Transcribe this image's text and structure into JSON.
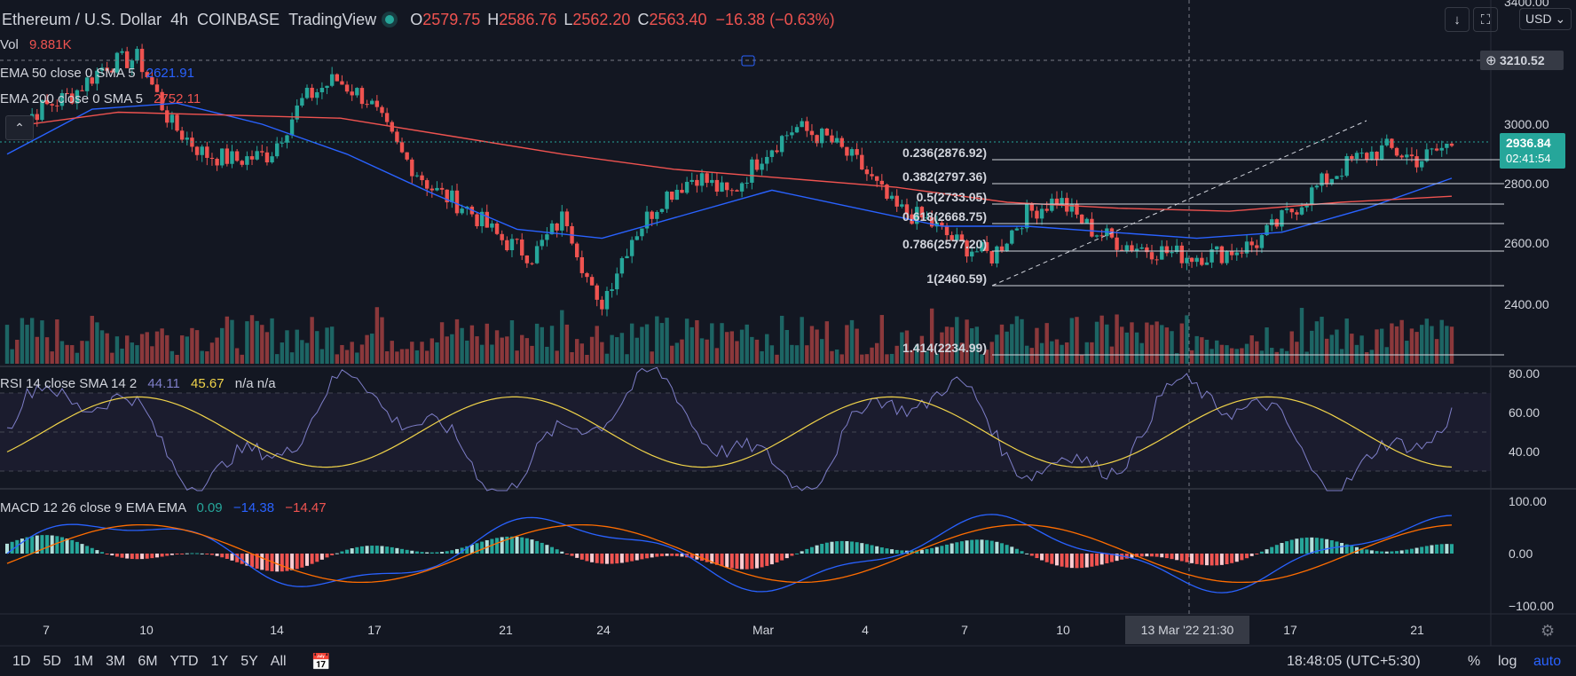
{
  "header": {
    "symbol": "Ethereum / U.S. Dollar",
    "interval": "4h",
    "exchange": "COINBASE",
    "publisher": "TradingView",
    "o_label": "O",
    "o": "2579.75",
    "h_label": "H",
    "h": "2586.76",
    "l_label": "L",
    "l": "2562.20",
    "c_label": "C",
    "c": "2563.40",
    "change": "−16.38 (−0.63%)",
    "currency": "USD"
  },
  "indicators": {
    "vol_label": "Vol",
    "vol_value": "9.881K",
    "ema50_label": "EMA 50 close 0 SMA 5",
    "ema50_value": "2621.91",
    "ema200_label": "EMA 200 close 0 SMA 5",
    "ema200_value": "2752.11",
    "rsi_label": "RSI 14 close SMA 14 2",
    "rsi_value": "44.11",
    "rsi_sma": "45.67",
    "rsi_na": "n/a n/a",
    "macd_label": "MACD 12 26 close 9 EMA EMA",
    "macd_hist": "0.09",
    "macd_line": "−14.38",
    "macd_signal": "−14.47"
  },
  "price_axis": {
    "ticks": [
      "3400.00",
      "3000.00",
      "2800.00",
      "2600.00",
      "2400.00"
    ],
    "crosshair_price": "3210.52",
    "last_price": "2936.84",
    "countdown": "02:41:54"
  },
  "rsi_axis": {
    "ticks": [
      "80.00",
      "60.00",
      "40.00"
    ]
  },
  "macd_axis": {
    "ticks": [
      "100.00",
      "0.00",
      "−100.00"
    ]
  },
  "time_axis": {
    "ticks": [
      "7",
      "10",
      "14",
      "17",
      "21",
      "24",
      "Mar",
      "4",
      "7",
      "10",
      "17",
      "21"
    ],
    "crosshair_label": "13 Mar '22   21:30"
  },
  "fib_levels": [
    {
      "label": "0.236(2876.92)"
    },
    {
      "label": "0.382(2797.36)"
    },
    {
      "label": "0.5(2733.05)"
    },
    {
      "label": "0.618(2668.75)"
    },
    {
      "label": "0.786(2577.20)"
    },
    {
      "label": "1(2460.59)"
    },
    {
      "label": "1.414(2234.99)"
    }
  ],
  "bottom_bar": {
    "timeframes": [
      "1D",
      "5D",
      "1M",
      "3M",
      "6M",
      "YTD",
      "1Y",
      "5Y",
      "All"
    ],
    "clock": "18:48:05 (UTC+5:30)",
    "pct": "%",
    "log": "log",
    "auto": "auto"
  },
  "colors": {
    "background": "#131722",
    "up": "#26a69a",
    "down": "#ef5350",
    "ema50": "#2962ff",
    "ema200": "#ef5350",
    "rsi": "#7e7ec8",
    "rsi_sma": "#f0d34a",
    "accent": "#2962ff"
  },
  "chart_data": {
    "type": "candlestick",
    "title": "Ethereum / U.S. Dollar · 4h · COINBASE",
    "x_range": [
      "Feb 6 2022",
      "Mar 22 2022"
    ],
    "y_range": [
      2200,
      3400
    ],
    "price_path": [
      [
        "Feb 6",
        2980
      ],
      [
        "Feb 7",
        3050
      ],
      [
        "Feb 8",
        3100
      ],
      [
        "Feb 9",
        3200
      ],
      [
        "Feb 10",
        3220
      ],
      [
        "Feb 11",
        3000
      ],
      [
        "Feb 12",
        2900
      ],
      [
        "Feb 13",
        2880
      ],
      [
        "Feb 14",
        2900
      ],
      [
        "Feb 15",
        3080
      ],
      [
        "Feb 16",
        3150
      ],
      [
        "Feb 17",
        3080
      ],
      [
        "Feb 18",
        2900
      ],
      [
        "Feb 19",
        2780
      ],
      [
        "Feb 20",
        2720
      ],
      [
        "Feb 21",
        2620
      ],
      [
        "Feb 22",
        2560
      ],
      [
        "Feb 23",
        2700
      ],
      [
        "Feb 24",
        2380
      ],
      [
        "Feb 25",
        2620
      ],
      [
        "Feb 26",
        2760
      ],
      [
        "Feb 27",
        2830
      ],
      [
        "Feb 28",
        2760
      ],
      [
        "Mar 1",
        2900
      ],
      [
        "Mar 2",
        2990
      ],
      [
        "Mar 3",
        2950
      ],
      [
        "Mar 4",
        2860
      ],
      [
        "Mar 5",
        2720
      ],
      [
        "Mar 6",
        2680
      ],
      [
        "Mar 7",
        2600
      ],
      [
        "Mar 8",
        2560
      ],
      [
        "Mar 9",
        2700
      ],
      [
        "Mar 10",
        2750
      ],
      [
        "Mar 11",
        2650
      ],
      [
        "Mar 12",
        2600
      ],
      [
        "Mar 13",
        2580
      ],
      [
        "Mar 14",
        2560
      ],
      [
        "Mar 15",
        2570
      ],
      [
        "Mar 16",
        2600
      ],
      [
        "Mar 17",
        2700
      ],
      [
        "Mar 18",
        2800
      ],
      [
        "Mar 19",
        2880
      ],
      [
        "Mar 20",
        2920
      ],
      [
        "Mar 21",
        2880
      ],
      [
        "Mar 22",
        2936
      ]
    ],
    "ema50_path": [
      2900,
      3050,
      3070,
      3000,
      2900,
      2770,
      2650,
      2620,
      2700,
      2780,
      2720,
      2660,
      2660,
      2640,
      2620,
      2640,
      2720,
      2820
    ],
    "ema200_path": [
      2990,
      3040,
      3030,
      3020,
      2960,
      2900,
      2850,
      2820,
      2790,
      2740,
      2720,
      2710,
      2740,
      2760
    ],
    "rsi_value": 44.11,
    "rsi_sma_value": 45.67,
    "macd_hist": 0.09,
    "macd_line": -14.38,
    "macd_signal": -14.47
  }
}
